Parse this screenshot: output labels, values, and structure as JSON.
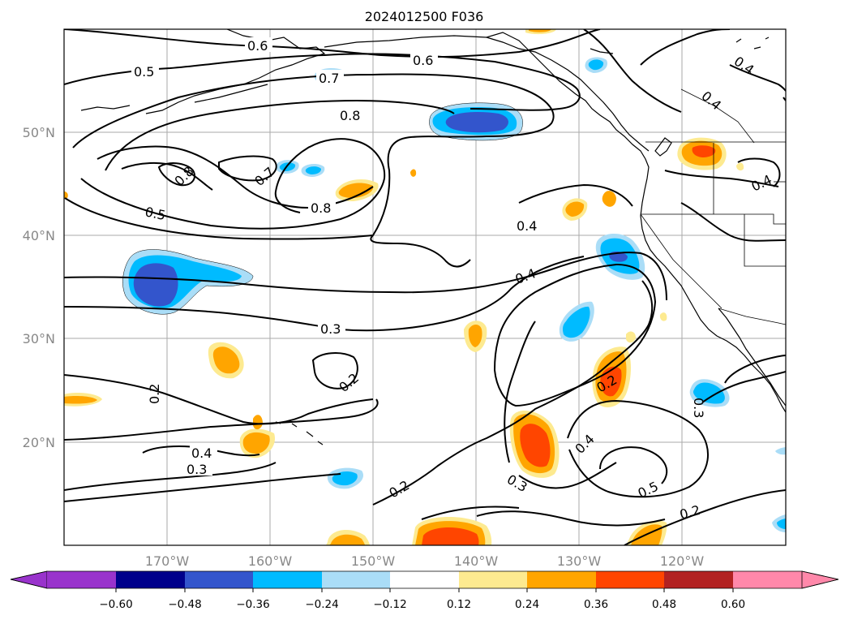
{
  "title": "2024012500 F036",
  "lat_labels": [
    "50°N",
    "40°N",
    "30°N",
    "20°N"
  ],
  "lon_labels": [
    "170°W",
    "160°W",
    "150°W",
    "140°W",
    "130°W",
    "120°W"
  ],
  "colorbar": {
    "tick_labels": [
      "−0.60",
      "−0.48",
      "−0.36",
      "−0.24",
      "−0.12",
      "0.12",
      "0.24",
      "0.36",
      "0.48",
      "0.60"
    ],
    "colors": {
      "under": "#9933cc",
      "lt_neg060": "#9933cc",
      "neg060_neg048": "#00008b",
      "neg048_neg036": "#3355cc",
      "neg036_neg024": "#00bbff",
      "neg024_neg012": "#aaddf7",
      "neg012_012": "#ffffff",
      "p012_024": "#fdea90",
      "p024_036": "#ffa500",
      "p036_048": "#ff4500",
      "p048_060": "#b22222",
      "over": "#ff88aa"
    }
  },
  "contour_labels": [
    "0.6",
    "0.6",
    "0.5",
    "0.7",
    "0.8",
    "0.8",
    "0.7",
    "0.8",
    "0.5",
    "0.4",
    "0.4",
    "0.4",
    "0.4",
    "0.4",
    "0.3",
    "0.2",
    "0.2",
    "0.2",
    "0.4",
    "0.3",
    "0.2",
    "0.3",
    "0.4",
    "0.5",
    "0.2",
    "0.3"
  ]
}
